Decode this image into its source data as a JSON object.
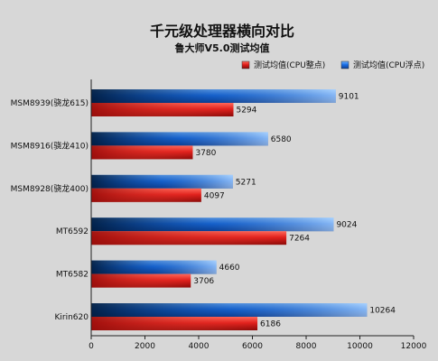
{
  "chart_data": {
    "type": "bar",
    "orientation": "horizontal",
    "title": "千元级处理器横向对比",
    "subtitle": "鲁大师V5.0测试均值",
    "categories": [
      "MSM8939(骁龙615)",
      "MSM8916(骁龙410)",
      "MSM8928(骁龙400)",
      "MT6592",
      "MT6582",
      "Kirin620"
    ],
    "series": [
      {
        "name": "测试均值(CPU整点)",
        "color": "#e0201c",
        "values": [
          5294,
          3780,
          4097,
          7264,
          3706,
          6186
        ]
      },
      {
        "name": "测试均值(CPU浮点)",
        "color": "#1a6fe6",
        "values": [
          9101,
          6580,
          5271,
          9024,
          4660,
          10264
        ]
      }
    ],
    "xlim": [
      0,
      12000
    ],
    "xticks": [
      0,
      2000,
      4000,
      6000,
      8000,
      10000,
      12000
    ],
    "legend_position": "top-right",
    "grid": false
  }
}
